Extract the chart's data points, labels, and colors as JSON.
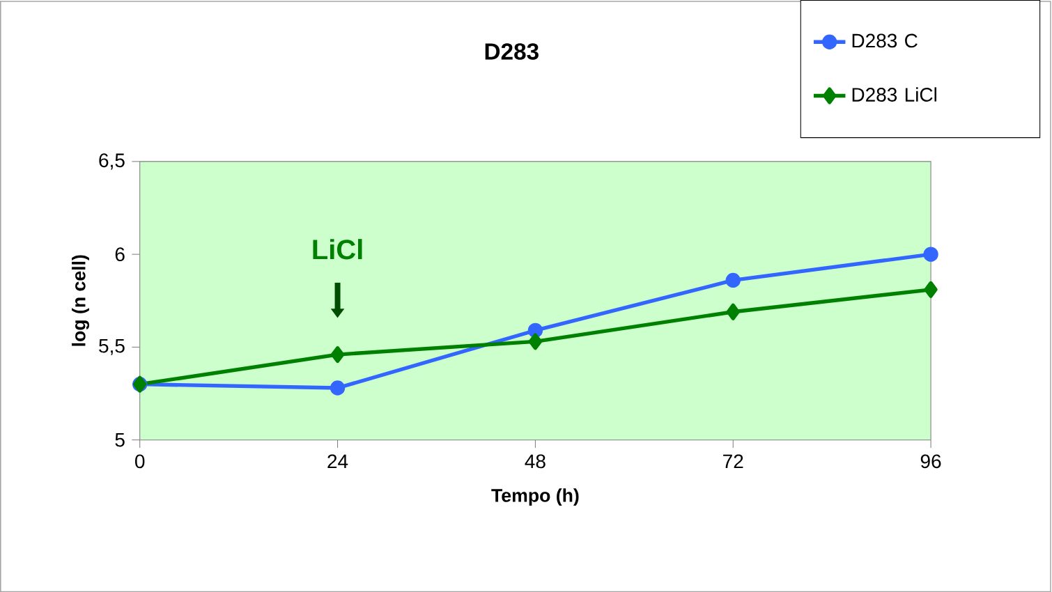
{
  "chart_data": {
    "type": "line",
    "title": "D283",
    "xlabel": "Tempo (h)",
    "ylabel": "log (n cell)",
    "x": [
      0,
      24,
      48,
      72,
      96
    ],
    "series": [
      {
        "name": "D283 C",
        "color": "#3366ff",
        "marker": "circle",
        "values": [
          5.3,
          5.28,
          5.59,
          5.86,
          6.0
        ]
      },
      {
        "name": "D283 LiCl",
        "color": "#008000",
        "marker": "diamond",
        "values": [
          5.3,
          5.46,
          5.53,
          5.69,
          5.81
        ]
      }
    ],
    "xlim": [
      0,
      96
    ],
    "xticks": [
      0,
      24,
      48,
      72,
      96
    ],
    "ylim": [
      5,
      6.5
    ],
    "yticks": [
      5,
      {
        "value": 5.5,
        "label": "5,5"
      },
      6,
      {
        "value": 6.5,
        "label": "6,5"
      }
    ],
    "grid": false,
    "legend": "top right",
    "annotations": [
      "LiCl"
    ]
  }
}
